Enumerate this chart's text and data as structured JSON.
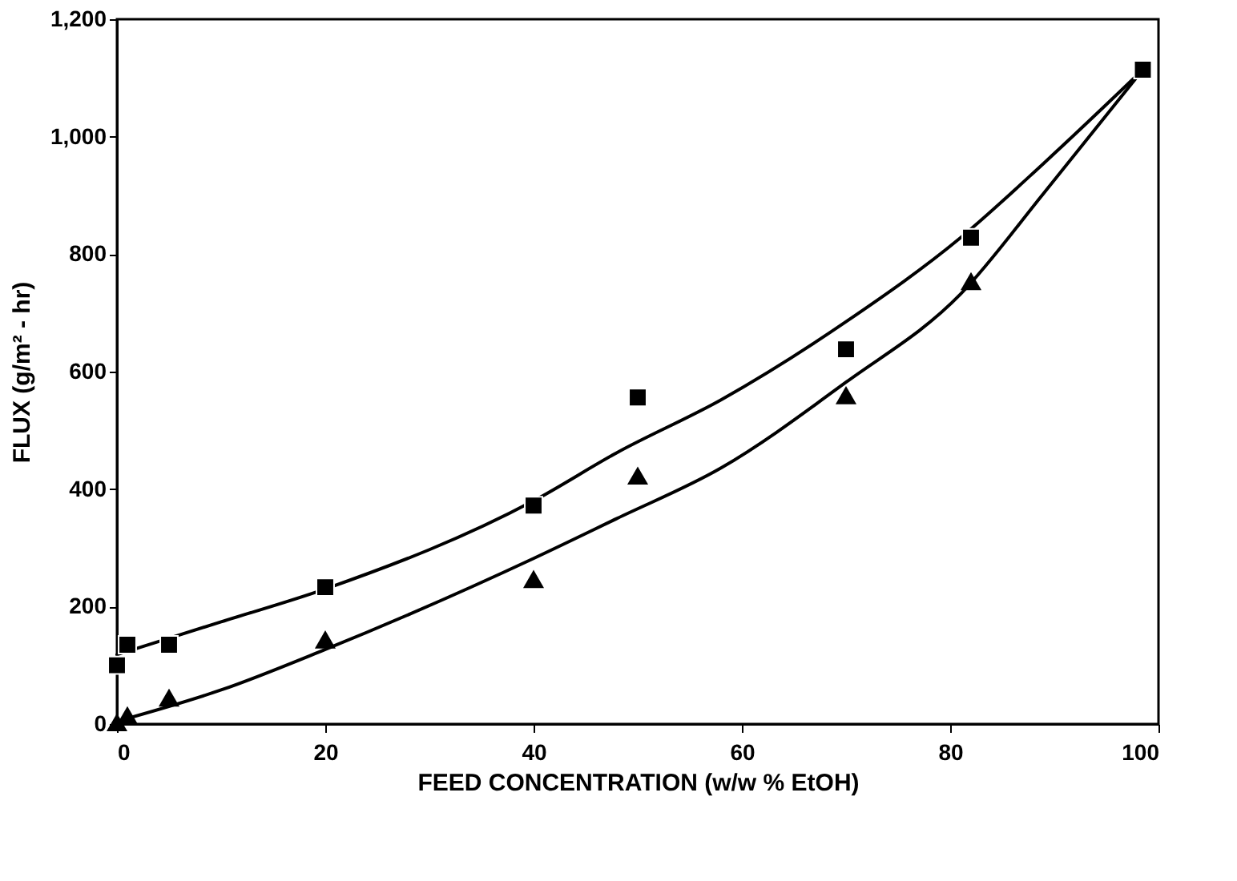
{
  "chart_data": {
    "type": "scatter",
    "xlabel": "FEED CONCENTRATION (w/w % EtOH)",
    "ylabel": "FLUX (g/m² - hr)",
    "xlim": [
      0,
      100
    ],
    "xticks": [
      0,
      20,
      40,
      60,
      80,
      100
    ],
    "ylim": [
      0,
      1200
    ],
    "yticks": [
      0,
      {
        "value": 200,
        "label": "200"
      },
      {
        "value": 400,
        "label": "400"
      },
      {
        "value": 600,
        "label": "600"
      },
      {
        "value": 800,
        "label": "800"
      },
      {
        "value": 1000,
        "label": "1,000"
      },
      {
        "value": 1200,
        "label": "1,200"
      }
    ],
    "grid": false,
    "series": [
      {
        "marker": "square",
        "color": "#000000",
        "x": [
          0,
          1,
          5,
          20,
          40,
          50,
          70,
          82,
          98.5
        ],
        "values": [
          100,
          135,
          135,
          233,
          372,
          556,
          638,
          828,
          1114
        ]
      },
      {
        "marker": "triangle",
        "color": "#000000",
        "x": [
          0,
          1,
          5,
          20,
          40,
          50,
          70,
          82
        ],
        "values": [
          3,
          15,
          45,
          144,
          247,
          423,
          560,
          754
        ]
      },
      {
        "type": "line",
        "line_style": "solid",
        "marker": "none",
        "color": "#000000",
        "x": [
          0,
          10,
          20,
          40,
          48,
          58,
          70,
          81,
          89,
          98.5
        ],
        "values": [
          118,
          174,
          230,
          380,
          462,
          552,
          685,
          828,
          955,
          1114
        ]
      },
      {
        "type": "line",
        "line_style": "solid",
        "marker": "none",
        "color": "#000000",
        "x": [
          0.5,
          10,
          20,
          40,
          48,
          58,
          70,
          81,
          89,
          98.5
        ],
        "values": [
          7,
          58,
          127,
          282,
          350,
          436,
          582,
          732,
          904,
          1114
        ]
      }
    ]
  }
}
